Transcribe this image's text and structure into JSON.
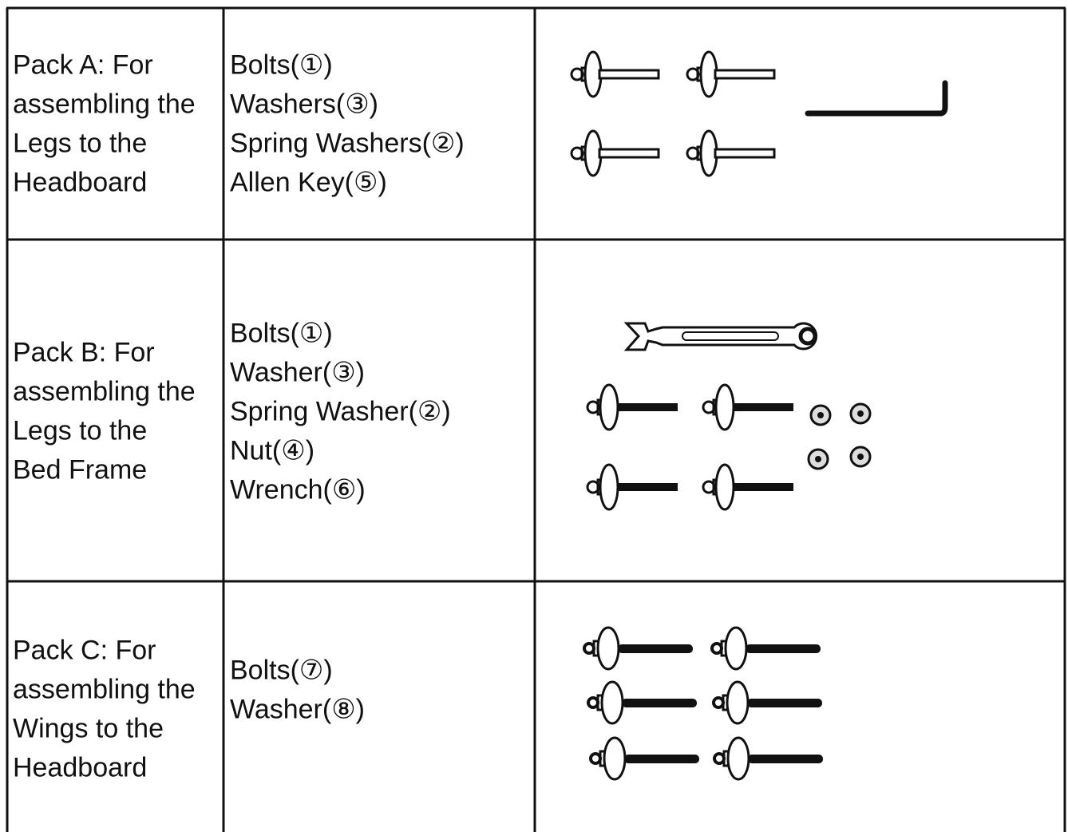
{
  "table": {
    "rows": [
      {
        "pack": [
          "Pack A: For",
          "assembling the",
          "Legs to the",
          "Headboard"
        ],
        "items": [
          "Bolts(①)",
          "Washers(③)",
          "Spring Washers(②)",
          "Allen Key(⑤)"
        ]
      },
      {
        "pack": [
          "Pack B: For",
          "assembling the",
          "Legs to the",
          "Bed Frame"
        ],
        "items": [
          "Bolts(①)",
          "Washer(③)",
          "Spring Washer(②)",
          "Nut(④)",
          "Wrench(⑥)"
        ]
      },
      {
        "pack": [
          "Pack C: For",
          "assembling the",
          "Wings to the",
          "Headboard"
        ],
        "items": [
          "Bolts(⑦)",
          "Washer(⑧)"
        ]
      }
    ]
  }
}
